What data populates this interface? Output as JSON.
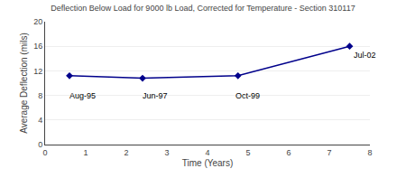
{
  "chart_data": {
    "type": "line",
    "title": "Deflection Below Load for 9000 lb Load, Corrected for Temperature - Section 310117",
    "xlabel": "Time (Years)",
    "ylabel": "Average Deflection (mils)",
    "x": [
      0.6,
      2.4,
      4.75,
      7.5
    ],
    "values": [
      11.2,
      10.8,
      11.2,
      16.0
    ],
    "color": "#00008B",
    "marker": "diamond",
    "xlim": [
      0,
      8
    ],
    "ylim": [
      0,
      20
    ],
    "xticks": [
      0,
      1,
      2,
      3,
      4,
      5,
      6,
      7,
      8
    ],
    "yticks": [
      0,
      4,
      8,
      12,
      16,
      20
    ],
    "grid": "y",
    "annotations": [
      {
        "text": "Aug-95",
        "x": 0.55,
        "y": 8.0
      },
      {
        "text": "Jun-97",
        "x": 2.35,
        "y": 8.0
      },
      {
        "text": "Oct-99",
        "x": 4.65,
        "y": 8.0
      },
      {
        "text": "Jul-02",
        "x": 7.55,
        "y": 14.5
      }
    ]
  }
}
